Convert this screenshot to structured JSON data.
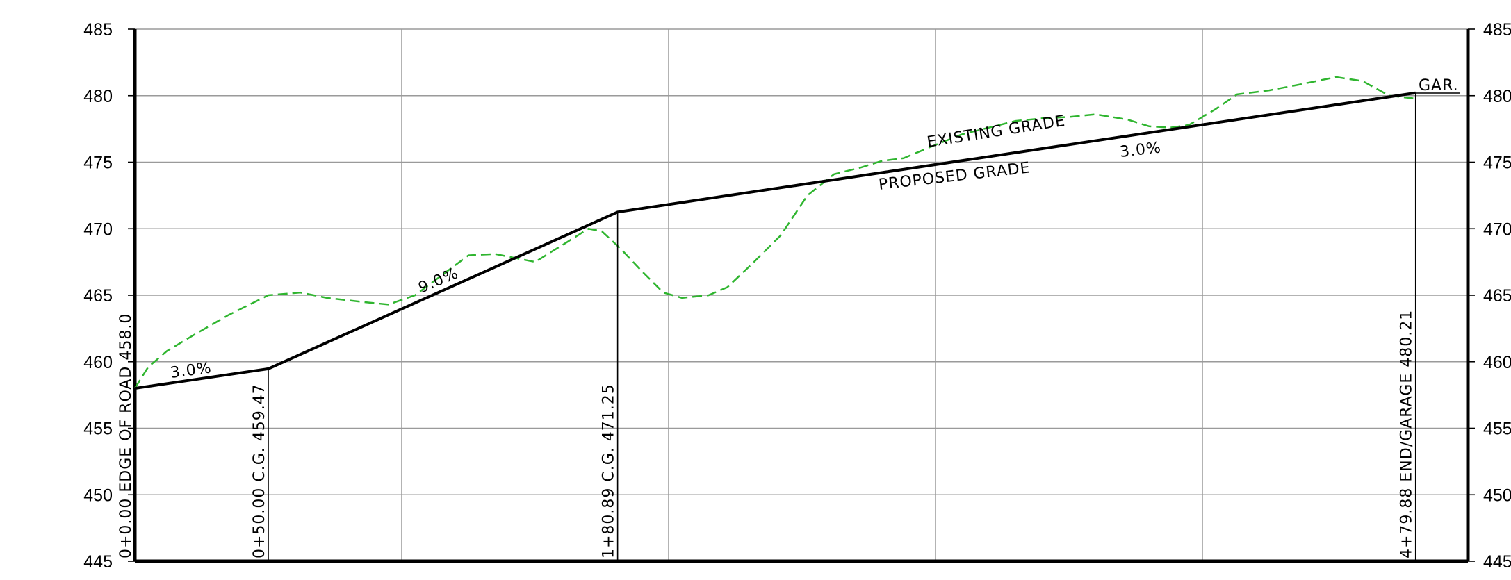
{
  "chart_data": {
    "type": "line",
    "ylim": [
      445,
      485
    ],
    "xlim": [
      0,
      500
    ],
    "grid": true,
    "y_ticks_left": [
      "485",
      "480",
      "475",
      "470",
      "465",
      "460",
      "455",
      "450",
      "445"
    ],
    "y_ticks_right": [
      "485",
      "480",
      "475",
      "470",
      "465",
      "460",
      "455",
      "450",
      "445"
    ],
    "proposed_grade": {
      "x": [
        0,
        50,
        180.89,
        479.88
      ],
      "y": [
        458.0,
        459.47,
        471.25,
        480.21
      ]
    },
    "existing_grade": {
      "x": [
        0,
        5,
        12,
        22,
        35,
        50,
        62,
        72,
        85,
        95,
        105,
        115,
        125,
        135,
        150,
        162,
        170,
        175,
        182,
        190,
        198,
        205,
        215,
        222,
        232,
        242,
        252,
        262,
        272,
        280,
        288,
        300,
        310,
        320,
        330,
        340,
        350,
        360,
        372,
        380,
        388,
        395,
        405,
        413,
        425,
        438,
        450,
        460,
        470,
        479
      ],
      "y": [
        458.0,
        459.6,
        460.8,
        462.0,
        463.5,
        465.0,
        465.2,
        464.8,
        464.5,
        464.3,
        465.0,
        466.5,
        468.0,
        468.1,
        467.5,
        469.0,
        470.0,
        469.8,
        468.5,
        466.8,
        465.2,
        464.8,
        465.0,
        465.6,
        467.5,
        469.5,
        472.5,
        474.1,
        474.6,
        475.1,
        475.3,
        476.3,
        477.1,
        477.6,
        478.1,
        478.3,
        478.4,
        478.6,
        478.2,
        477.7,
        477.6,
        477.8,
        479.0,
        480.1,
        480.4,
        480.9,
        481.4,
        481.1,
        480.0,
        479.8
      ]
    },
    "annotations": {
      "slope_1": "3.0%",
      "slope_2": "9.0%",
      "slope_3": "3.0%",
      "existing_label": "EXISTING GRADE",
      "proposed_label": "PROPOSED GRADE",
      "end_label": "GAR."
    },
    "stations": [
      {
        "x": 0,
        "label": "0+0.00 EDGE OF ROAD 458.0"
      },
      {
        "x": 50,
        "label": "0+50.00 C.G. 459.47"
      },
      {
        "x": 180.89,
        "label": "1+80.89 C.G. 471.25"
      },
      {
        "x": 479.88,
        "label": "4+79.88 END/GARAGE 480.21"
      }
    ]
  }
}
